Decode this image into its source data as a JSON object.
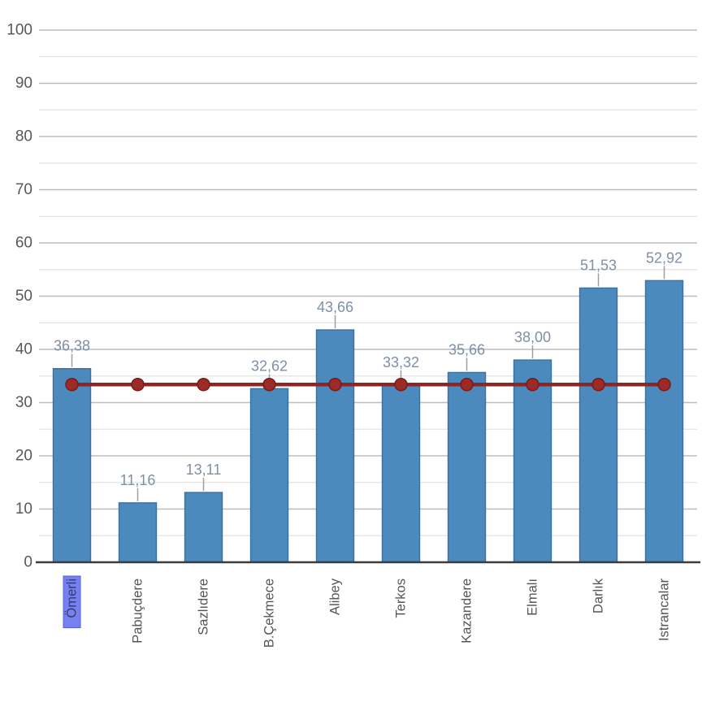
{
  "window": {
    "background": "#ffffff"
  },
  "chart_data": {
    "type": "bar",
    "title": "",
    "xlabel": "",
    "ylabel": "",
    "categories": [
      "Ömerli",
      "Pabuçdere",
      "Sazlıdere",
      "B.Çekmece",
      "Alibey",
      "Terkos",
      "Kazandere",
      "Elmalı",
      "Darlık",
      "Istrancalar"
    ],
    "series": [
      {
        "name": "bar-values",
        "type": "bar",
        "values": [
          36.38,
          11.16,
          13.11,
          32.62,
          43.66,
          33.32,
          35.66,
          38.0,
          51.53,
          52.92
        ],
        "value_labels": [
          "36,38",
          "11,16",
          "13,11",
          "32,62",
          "43,66",
          "33,32",
          "35,66",
          "38,00",
          "51,53",
          "52,92"
        ]
      },
      {
        "name": "reference-line",
        "type": "line",
        "value": 33.4,
        "marker": "circle"
      }
    ],
    "ylim": [
      0,
      100
    ],
    "y_tick_step": 10,
    "minor_grid_step": 5,
    "y_tick_labels": [
      "0",
      "10",
      "20",
      "30",
      "40",
      "50",
      "60",
      "70",
      "80",
      "90",
      "100"
    ],
    "decimal_separator": ",",
    "grid": true,
    "legend": false,
    "selected_category": "Ömerli"
  },
  "colors": {
    "bar_fill": "#4c89bd",
    "bar_border": "#39719f",
    "reference_line": "#8e2423",
    "reference_marker_fill": "#9c2a26",
    "reference_marker_border": "#771c19",
    "value_label": "#7f8fa6",
    "leader_line": "#9e9e9e",
    "axis_tick_label": "#58585a",
    "category_label": "#555555",
    "grid_major": "#bdbdbd",
    "grid_minor": "#e3e3e3",
    "axis_line": "#3c3c3c",
    "selection_background": "#7780f0",
    "selection_border": "#5560d8",
    "selection_text": "#343c6e"
  }
}
